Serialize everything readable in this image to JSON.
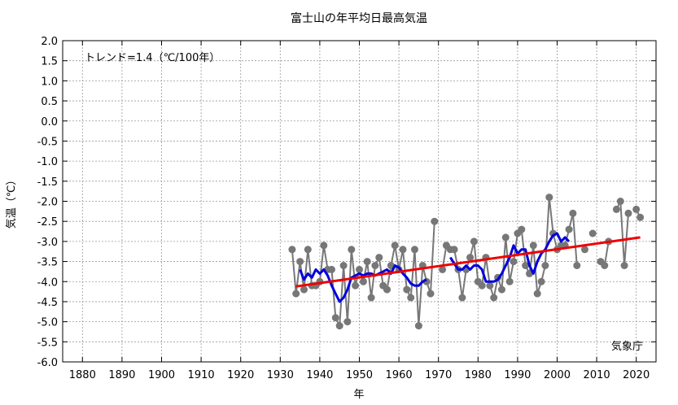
{
  "chart_data": {
    "type": "line",
    "title": "富士山の年平均日最高気温",
    "xlabel": "年",
    "ylabel": "気温（℃）",
    "xlim": [
      1875,
      2025
    ],
    "ylim": [
      -6.0,
      2.0
    ],
    "x_ticks": [
      1880,
      1890,
      1900,
      1910,
      1920,
      1930,
      1940,
      1950,
      1960,
      1970,
      1980,
      1990,
      2000,
      2010,
      2020
    ],
    "y_ticks": [
      2.0,
      1.5,
      1.0,
      0.5,
      0.0,
      -0.5,
      -1.0,
      -1.5,
      -2.0,
      -2.5,
      -3.0,
      -3.5,
      -4.0,
      -4.5,
      -5.0,
      -5.5,
      -6.0
    ],
    "y_tick_labels": [
      "2.0",
      "1.5",
      "1.0",
      "0.5",
      "0.0",
      "-0.5",
      "-1.0",
      "-1.5",
      "-2.0",
      "-2.5",
      "-3.0",
      "-3.5",
      "-4.0",
      "-4.5",
      "-5.0",
      "-5.5",
      "-6.0"
    ],
    "grid": true,
    "annotations": {
      "trend_text": "トレンド=1.4（℃/100年）",
      "source_text": "気象庁"
    },
    "series": [
      {
        "color": "#777777",
        "markers": true,
        "points": [
          [
            1933,
            -3.2
          ],
          [
            1934,
            -4.3
          ],
          [
            1935,
            -3.5
          ],
          [
            1936,
            -4.2
          ],
          [
            1937,
            -3.2
          ],
          [
            1938,
            -4.1
          ],
          [
            1939,
            -4.1
          ],
          [
            1940,
            -4.0
          ],
          [
            1941,
            -3.1
          ],
          [
            1942,
            -3.7
          ],
          [
            1943,
            -3.7
          ],
          [
            1944,
            -4.9
          ],
          [
            1945,
            -5.1
          ],
          [
            1946,
            -3.6
          ],
          [
            1947,
            -5.0
          ],
          [
            1948,
            -3.2
          ],
          [
            1949,
            -4.1
          ],
          [
            1950,
            -3.7
          ],
          [
            1951,
            -4.0
          ],
          [
            1952,
            -3.5
          ],
          [
            1953,
            -4.4
          ],
          [
            1954,
            -3.6
          ],
          [
            1955,
            -3.4
          ],
          [
            1956,
            -4.1
          ],
          [
            1957,
            -4.2
          ],
          [
            1958,
            -3.6
          ],
          [
            1959,
            -3.1
          ],
          [
            1960,
            -3.7
          ],
          [
            1961,
            -3.2
          ],
          [
            1962,
            -4.2
          ],
          [
            1963,
            -4.4
          ],
          [
            1964,
            -3.2
          ],
          [
            1965,
            -5.1
          ],
          [
            1966,
            -3.6
          ],
          [
            1967,
            -4.0
          ],
          [
            1968,
            -4.3
          ],
          [
            1969,
            -2.5
          ],
          null,
          [
            1971,
            -3.7
          ],
          [
            1972,
            -3.1
          ],
          [
            1973,
            -3.2
          ],
          [
            1974,
            -3.2
          ],
          [
            1975,
            -3.7
          ],
          [
            1976,
            -4.4
          ],
          [
            1977,
            -3.7
          ],
          [
            1978,
            -3.4
          ],
          [
            1979,
            -3.0
          ],
          [
            1980,
            -4.0
          ],
          [
            1981,
            -4.1
          ],
          [
            1982,
            -3.4
          ],
          [
            1983,
            -4.1
          ],
          [
            1984,
            -4.4
          ],
          [
            1985,
            -3.9
          ],
          [
            1986,
            -4.2
          ],
          [
            1987,
            -2.9
          ],
          [
            1988,
            -4.0
          ],
          [
            1989,
            -3.5
          ],
          [
            1990,
            -2.8
          ],
          [
            1991,
            -2.7
          ],
          [
            1992,
            -3.6
          ],
          [
            1993,
            -3.8
          ],
          [
            1994,
            -3.1
          ],
          [
            1995,
            -4.3
          ],
          [
            1996,
            -4.0
          ],
          [
            1997,
            -3.6
          ],
          [
            1998,
            -1.9
          ],
          [
            1999,
            -2.8
          ],
          [
            2000,
            -3.2
          ],
          [
            2001,
            -3.1
          ],
          [
            2002,
            -3.1
          ],
          [
            2003,
            -2.7
          ],
          [
            2004,
            -2.3
          ],
          [
            2005,
            -3.6
          ],
          null,
          [
            2007,
            -3.2
          ],
          null,
          [
            2009,
            -2.8
          ],
          null,
          [
            2011,
            -3.5
          ],
          [
            2012,
            -3.6
          ],
          [
            2013,
            -3.0
          ],
          null,
          [
            2015,
            -2.2
          ],
          [
            2016,
            -2.0
          ],
          [
            2017,
            -3.6
          ],
          [
            2018,
            -2.3
          ],
          null,
          [
            2020,
            -2.2
          ],
          [
            2021,
            -2.4
          ]
        ]
      },
      {
        "color": "#0000dd",
        "markers": false,
        "points": [
          [
            1935,
            -3.7
          ],
          [
            1936,
            -3.95
          ],
          [
            1937,
            -3.8
          ],
          [
            1938,
            -3.9
          ],
          [
            1939,
            -3.7
          ],
          [
            1940,
            -3.8
          ],
          [
            1941,
            -3.7
          ],
          [
            1942,
            -3.85
          ],
          [
            1943,
            -4.1
          ],
          [
            1944,
            -4.3
          ],
          [
            1945,
            -4.5
          ],
          [
            1946,
            -4.4
          ],
          [
            1947,
            -4.2
          ],
          [
            1948,
            -3.9
          ],
          [
            1949,
            -3.85
          ],
          [
            1950,
            -3.8
          ],
          [
            1951,
            -3.85
          ],
          [
            1952,
            -3.8
          ],
          [
            1953,
            -3.8
          ],
          [
            1954,
            -3.85
          ],
          [
            1955,
            -3.8
          ],
          [
            1956,
            -3.75
          ],
          [
            1957,
            -3.7
          ],
          [
            1958,
            -3.8
          ],
          [
            1959,
            -3.6
          ],
          [
            1960,
            -3.65
          ],
          [
            1961,
            -3.8
          ],
          [
            1962,
            -3.9
          ],
          [
            1963,
            -4.05
          ],
          [
            1964,
            -4.1
          ],
          [
            1965,
            -4.1
          ],
          [
            1966,
            -4.0
          ],
          [
            1967,
            -3.95
          ],
          null,
          [
            1973,
            -3.4
          ],
          [
            1974,
            -3.55
          ],
          [
            1975,
            -3.7
          ],
          [
            1976,
            -3.7
          ],
          [
            1977,
            -3.6
          ],
          [
            1978,
            -3.7
          ],
          [
            1979,
            -3.6
          ],
          [
            1980,
            -3.6
          ],
          [
            1981,
            -3.7
          ],
          [
            1982,
            -4.0
          ],
          [
            1983,
            -4.0
          ],
          [
            1984,
            -4.0
          ],
          [
            1985,
            -3.95
          ],
          [
            1986,
            -3.8
          ],
          [
            1987,
            -3.6
          ],
          [
            1988,
            -3.4
          ],
          [
            1989,
            -3.1
          ],
          [
            1990,
            -3.3
          ],
          [
            1991,
            -3.2
          ],
          [
            1992,
            -3.2
          ],
          [
            1993,
            -3.6
          ],
          [
            1994,
            -3.8
          ],
          [
            1995,
            -3.5
          ],
          [
            1996,
            -3.3
          ],
          [
            1997,
            -3.2
          ],
          [
            1998,
            -3.0
          ],
          [
            1999,
            -2.85
          ],
          [
            2000,
            -2.8
          ],
          [
            2001,
            -3.0
          ],
          [
            2002,
            -2.9
          ],
          [
            2003,
            -3.0
          ]
        ]
      },
      {
        "color": "#ee0000",
        "markers": false,
        "points": [
          [
            1934,
            -4.12
          ],
          [
            2021,
            -2.9
          ]
        ]
      }
    ]
  }
}
